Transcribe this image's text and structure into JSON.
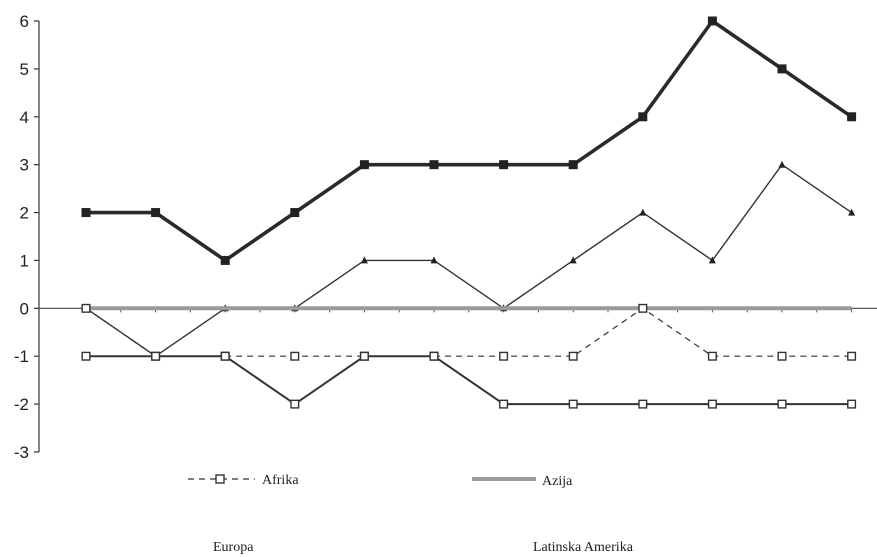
{
  "chart_data": {
    "type": "line",
    "title": "",
    "xlabel": "",
    "ylabel": "",
    "ylim": [
      -3,
      6
    ],
    "yticks": [
      -3,
      -2,
      -1,
      0,
      1,
      2,
      3,
      4,
      5,
      6
    ],
    "x": [
      1,
      2,
      3,
      4,
      5,
      6,
      7,
      8,
      9,
      10,
      11,
      12
    ],
    "grid": false,
    "legend_placement": "bottom",
    "series": [
      {
        "name": "",
        "style": "thick",
        "marker": "square-filled",
        "color": "#2a2a2a",
        "values": [
          2,
          2,
          1,
          2,
          3,
          3,
          3,
          3,
          4,
          6,
          5,
          4
        ]
      },
      {
        "name": "",
        "style": "thin",
        "marker": "triangle",
        "color": "#333333",
        "values": [
          0,
          -1,
          0,
          0,
          1,
          1,
          0,
          1,
          2,
          1,
          3,
          2
        ]
      },
      {
        "name": "Azija",
        "style": "gray-thick",
        "marker": "none",
        "color": "#9a9a9a",
        "values": [
          0,
          0,
          0,
          0,
          0,
          0,
          0,
          0,
          0,
          0,
          0,
          0
        ]
      },
      {
        "name": "Afrika",
        "style": "dashed",
        "marker": "square-open",
        "color": "#333333",
        "values": [
          0,
          -1,
          -1,
          -1,
          -1,
          -1,
          -1,
          -1,
          0,
          -1,
          -1,
          -1
        ]
      },
      {
        "name": "",
        "style": "medium",
        "marker": "square-open",
        "color": "#333333",
        "values": [
          -1,
          -1,
          -1,
          -2,
          -1,
          -1,
          -2,
          -2,
          -2,
          -2,
          -2,
          -2
        ]
      }
    ],
    "legend": [
      {
        "label": "Afrika",
        "series_index": 3
      },
      {
        "label": "Azija",
        "series_index": 2
      }
    ],
    "bottom_labels": [
      "Europa",
      "Latinska Amerika"
    ]
  }
}
